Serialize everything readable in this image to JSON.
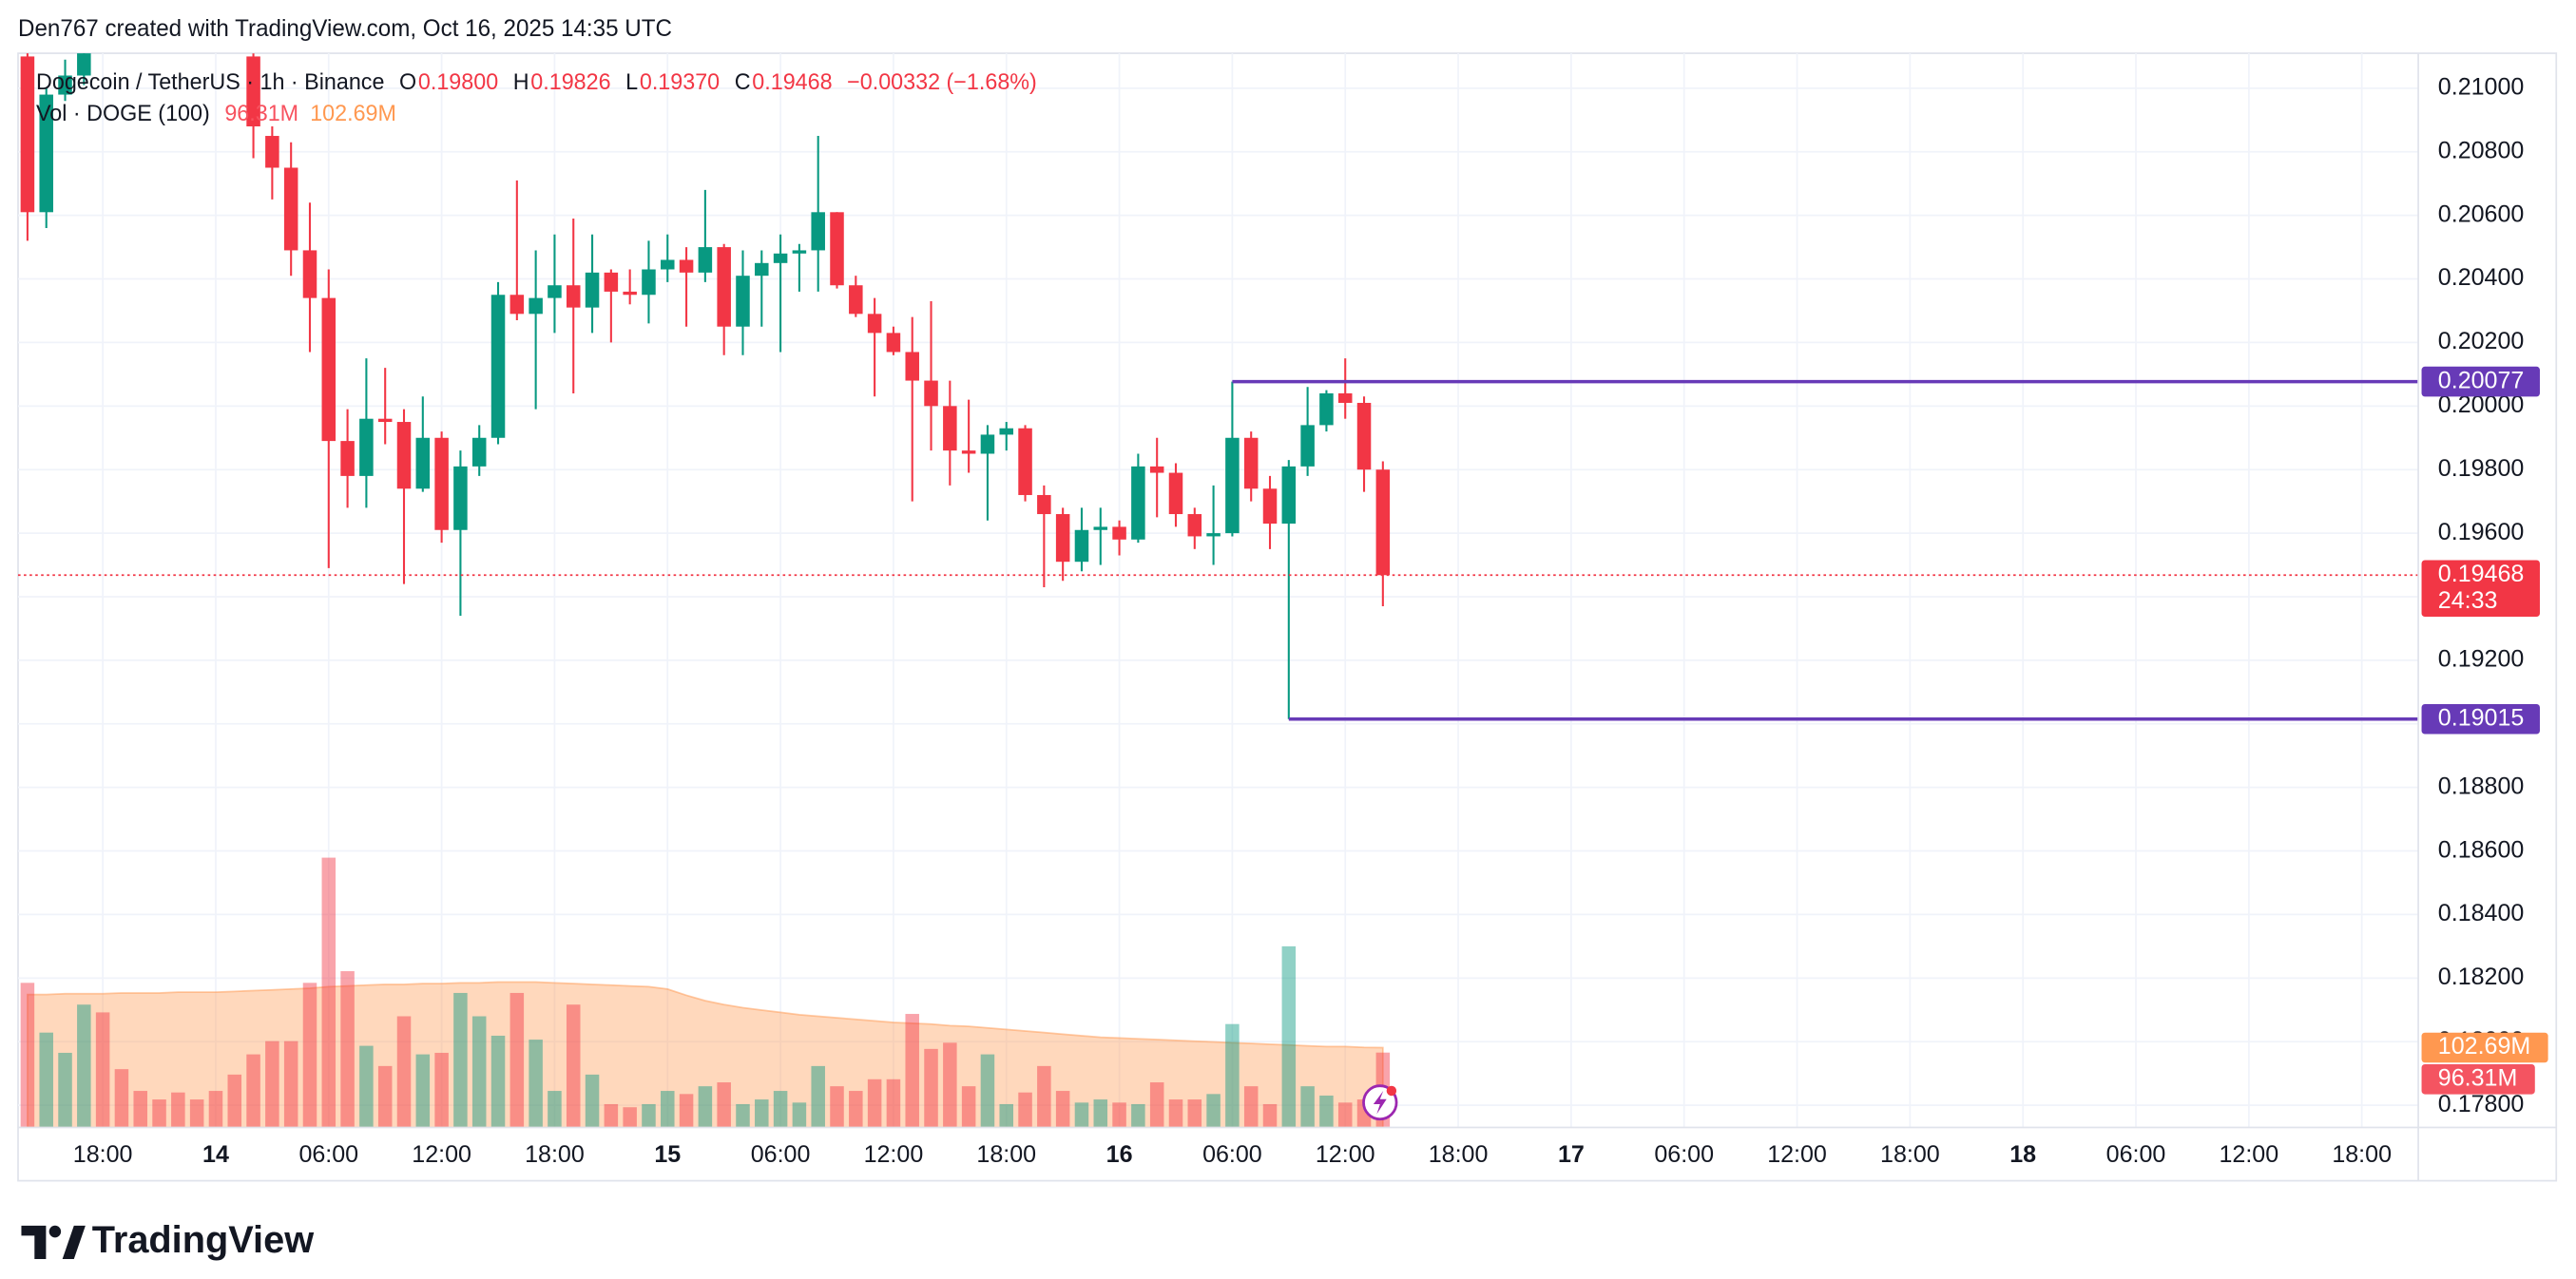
{
  "header": "Den767 created with TradingView.com, Oct 16, 2025 14:35 UTC",
  "footer": {
    "brand": "TradingView"
  },
  "chart_data": {
    "type": "candlestick",
    "legend": {
      "title": "Dogecoin / TetherUS · 1h · Binance",
      "items": [
        {
          "key": "O",
          "value": 0.198,
          "label": "0.19800"
        },
        {
          "key": "H",
          "value": 0.19826,
          "label": "0.19826"
        },
        {
          "key": "L",
          "value": 0.1937,
          "label": "0.19370"
        },
        {
          "key": "C",
          "value": 0.19468,
          "label": "0.19468"
        }
      ],
      "change": {
        "value": -0.00332,
        "percent": -1.68,
        "label": "−0.00332 (−1.68%)"
      },
      "volume_title": "Vol · DOGE (100)"
    },
    "up_color": "#089981",
    "down_color": "#f23645",
    "grid": true,
    "x": [
      "2025-10-13T14:00",
      "2025-10-13T15:00",
      "2025-10-13T16:00",
      "2025-10-13T17:00",
      "2025-10-13T18:00",
      "2025-10-13T19:00",
      "2025-10-13T20:00",
      "2025-10-13T21:00",
      "2025-10-13T22:00",
      "2025-10-13T23:00",
      "2025-10-14T00:00",
      "2025-10-14T01:00",
      "2025-10-14T02:00",
      "2025-10-14T03:00",
      "2025-10-14T04:00",
      "2025-10-14T05:00",
      "2025-10-14T06:00",
      "2025-10-14T07:00",
      "2025-10-14T08:00",
      "2025-10-14T09:00",
      "2025-10-14T10:00",
      "2025-10-14T11:00",
      "2025-10-14T12:00",
      "2025-10-14T13:00",
      "2025-10-14T14:00",
      "2025-10-14T15:00",
      "2025-10-14T16:00",
      "2025-10-14T17:00",
      "2025-10-14T18:00",
      "2025-10-14T19:00",
      "2025-10-14T20:00",
      "2025-10-14T21:00",
      "2025-10-14T22:00",
      "2025-10-14T23:00",
      "2025-10-15T00:00",
      "2025-10-15T01:00",
      "2025-10-15T02:00",
      "2025-10-15T03:00",
      "2025-10-15T04:00",
      "2025-10-15T05:00",
      "2025-10-15T06:00",
      "2025-10-15T07:00",
      "2025-10-15T08:00",
      "2025-10-15T09:00",
      "2025-10-15T10:00",
      "2025-10-15T11:00",
      "2025-10-15T12:00",
      "2025-10-15T13:00",
      "2025-10-15T14:00",
      "2025-10-15T15:00",
      "2025-10-15T16:00",
      "2025-10-15T17:00",
      "2025-10-15T18:00",
      "2025-10-15T19:00",
      "2025-10-15T20:00",
      "2025-10-15T21:00",
      "2025-10-15T22:00",
      "2025-10-15T23:00",
      "2025-10-16T00:00",
      "2025-10-16T01:00",
      "2025-10-16T02:00",
      "2025-10-16T03:00",
      "2025-10-16T04:00",
      "2025-10-16T05:00",
      "2025-10-16T06:00",
      "2025-10-16T07:00",
      "2025-10-16T08:00",
      "2025-10-16T09:00",
      "2025-10-16T10:00",
      "2025-10-16T11:00",
      "2025-10-16T12:00",
      "2025-10-16T13:00",
      "2025-10-16T14:00"
    ],
    "open": [
      0.211,
      0.2061,
      0.2098,
      0.2104,
      null,
      null,
      null,
      null,
      null,
      null,
      null,
      null,
      0.211,
      0.2085,
      0.2075,
      0.2049,
      0.2034,
      0.1989,
      0.1978,
      0.1996,
      0.1995,
      0.1974,
      0.199,
      0.1961,
      0.1981,
      0.199,
      0.2035,
      0.2029,
      0.2034,
      0.2038,
      0.2031,
      0.2042,
      0.2036,
      0.2035,
      0.2043,
      0.2046,
      0.2042,
      0.205,
      0.2025,
      0.2041,
      0.2045,
      0.2048,
      0.2049,
      0.2061,
      0.2038,
      0.2029,
      0.2023,
      0.2017,
      0.2008,
      0.2,
      0.1986,
      0.1985,
      0.1991,
      0.1993,
      0.1972,
      0.1966,
      0.1951,
      0.1961,
      0.1962,
      0.1958,
      0.1981,
      0.1979,
      0.1966,
      0.1959,
      0.196,
      0.199,
      0.1974,
      0.1963,
      0.1981,
      0.1994,
      0.2004,
      0.2001,
      0.198
    ],
    "high": [
      0.2112,
      0.21,
      0.2109,
      0.2115,
      null,
      null,
      null,
      null,
      null,
      null,
      null,
      null,
      0.2111,
      0.2088,
      0.2083,
      0.2064,
      0.2043,
      0.1999,
      0.2015,
      0.2012,
      0.1999,
      0.2003,
      0.1992,
      0.1986,
      0.1994,
      0.2039,
      0.2071,
      0.2049,
      0.2054,
      0.2059,
      0.2054,
      0.2043,
      0.2043,
      0.2052,
      0.2054,
      0.205,
      0.2068,
      0.2051,
      0.2049,
      0.2049,
      0.2054,
      0.2051,
      0.2085,
      0.2061,
      0.2041,
      0.2034,
      0.2025,
      0.2028,
      0.2033,
      0.2008,
      0.2002,
      0.1994,
      0.1995,
      0.1994,
      0.1975,
      0.1968,
      0.1968,
      0.1968,
      0.1964,
      0.1985,
      0.199,
      0.1982,
      0.1968,
      0.1975,
      0.20077,
      0.1992,
      0.1978,
      0.1983,
      0.2006,
      0.2005,
      0.2015,
      0.2003,
      0.19826
    ],
    "low": [
      0.2052,
      0.2056,
      0.2096,
      0.2101,
      null,
      null,
      null,
      null,
      null,
      null,
      null,
      null,
      0.2078,
      0.2065,
      0.2041,
      0.2017,
      0.1949,
      0.1968,
      0.1968,
      0.1988,
      0.1944,
      0.1973,
      0.1957,
      0.1934,
      0.1978,
      0.1988,
      0.2027,
      0.1999,
      0.2023,
      0.2004,
      0.2023,
      0.202,
      0.2032,
      0.2026,
      0.2039,
      0.2025,
      0.2039,
      0.2016,
      0.2016,
      0.2025,
      0.2017,
      0.2036,
      0.2036,
      0.2037,
      0.2028,
      0.2003,
      0.2016,
      0.197,
      0.1986,
      0.1975,
      0.1979,
      0.1964,
      0.1986,
      0.197,
      0.1943,
      0.1945,
      0.1948,
      0.195,
      0.1953,
      0.1957,
      0.1965,
      0.1962,
      0.1955,
      0.195,
      0.1959,
      0.197,
      0.1955,
      0.19015,
      0.1978,
      0.1992,
      0.1996,
      0.1973,
      0.1937
    ],
    "close": [
      0.2061,
      0.2098,
      0.2104,
      0.2112,
      null,
      null,
      null,
      null,
      null,
      null,
      null,
      null,
      0.2088,
      0.2075,
      0.2049,
      0.2034,
      0.1989,
      0.1978,
      0.1996,
      0.1995,
      0.1974,
      0.199,
      0.1961,
      0.1981,
      0.199,
      0.2035,
      0.2029,
      0.2034,
      0.2038,
      0.2031,
      0.2042,
      0.2036,
      0.2035,
      0.2043,
      0.2046,
      0.2042,
      0.205,
      0.2025,
      0.2041,
      0.2045,
      0.2048,
      0.2049,
      0.2061,
      0.2038,
      0.2029,
      0.2023,
      0.2017,
      0.2008,
      0.2,
      0.1986,
      0.1985,
      0.1991,
      0.1993,
      0.1972,
      0.1966,
      0.1951,
      0.1961,
      0.1962,
      0.1958,
      0.1981,
      0.1979,
      0.1966,
      0.1959,
      0.196,
      0.199,
      0.1974,
      0.1963,
      0.1981,
      0.1994,
      0.2004,
      0.2001,
      0.198,
      0.19468
    ],
    "volume": {
      "values": [
        186,
        122,
        96,
        158,
        148,
        75,
        47,
        36,
        45,
        36,
        47,
        68,
        94,
        111,
        111,
        186,
        347,
        201,
        105,
        79,
        143,
        94,
        96,
        173,
        143,
        118,
        173,
        113,
        47,
        158,
        68,
        30,
        26,
        30,
        47,
        43,
        53,
        58,
        30,
        36,
        47,
        32,
        79,
        53,
        47,
        62,
        62,
        146,
        101,
        109,
        53,
        94,
        30,
        45,
        79,
        47,
        32,
        36,
        32,
        30,
        58,
        36,
        36,
        43,
        133,
        53,
        30,
        233,
        53,
        41,
        32,
        36,
        96.31
      ],
      "value_label": "96.31M",
      "ma": [
        171,
        171,
        172,
        172,
        172,
        173,
        173,
        173,
        174,
        174,
        174,
        175,
        176,
        177,
        178,
        179,
        181,
        182,
        183,
        184,
        184,
        185,
        185,
        186,
        186,
        187,
        187,
        187,
        186,
        185,
        184,
        183,
        182,
        181,
        178,
        170,
        163,
        158,
        154,
        151,
        148,
        145,
        143,
        141,
        139,
        137,
        135,
        134,
        133,
        131,
        130,
        128,
        126,
        124,
        122,
        120,
        118,
        116,
        115,
        114,
        113,
        112,
        111,
        110,
        109,
        108,
        107,
        106,
        105,
        104,
        104,
        103,
        102.69
      ],
      "ma_label": "102.69M",
      "ma_color": "#ff9850"
    },
    "levels": [
      {
        "value": 0.20077,
        "start": "2025-10-16T06:00",
        "color": "#673ab7"
      },
      {
        "value": 0.19015,
        "start": "2025-10-16T09:00",
        "color": "#673ab7"
      }
    ],
    "countdown": "24:33",
    "xlim": [
      "2025-10-13T13:30",
      "2025-10-18T21:00"
    ],
    "xticks": [
      {
        "value": "2025-10-13T18:00",
        "label": "18:00"
      },
      {
        "value": "2025-10-14T00:00",
        "label": "14"
      },
      {
        "value": "2025-10-14T06:00",
        "label": "06:00"
      },
      {
        "value": "2025-10-14T12:00",
        "label": "12:00"
      },
      {
        "value": "2025-10-14T18:00",
        "label": "18:00"
      },
      {
        "value": "2025-10-15T00:00",
        "label": "15"
      },
      {
        "value": "2025-10-15T06:00",
        "label": "06:00"
      },
      {
        "value": "2025-10-15T12:00",
        "label": "12:00"
      },
      {
        "value": "2025-10-15T18:00",
        "label": "18:00"
      },
      {
        "value": "2025-10-16T00:00",
        "label": "16"
      },
      {
        "value": "2025-10-16T06:00",
        "label": "06:00"
      },
      {
        "value": "2025-10-16T12:00",
        "label": "12:00"
      },
      {
        "value": "2025-10-16T18:00",
        "label": "18:00"
      },
      {
        "value": "2025-10-17T00:00",
        "label": "17"
      },
      {
        "value": "2025-10-17T06:00",
        "label": "06:00"
      },
      {
        "value": "2025-10-17T12:00",
        "label": "12:00"
      },
      {
        "value": "2025-10-17T18:00",
        "label": "18:00"
      },
      {
        "value": "2025-10-18T00:00",
        "label": "18"
      },
      {
        "value": "2025-10-18T06:00",
        "label": "06:00"
      },
      {
        "value": "2025-10-18T12:00",
        "label": "12:00"
      },
      {
        "value": "2025-10-18T18:00",
        "label": "18:00"
      }
    ],
    "ylim": [
      0.1773,
      0.2111
    ],
    "yticks": [
      {
        "value": 0.178,
        "label": "0.17800"
      },
      {
        "value": 0.18,
        "label": "0.18000"
      },
      {
        "value": 0.182,
        "label": "0.18200"
      },
      {
        "value": 0.184,
        "label": "0.18400"
      },
      {
        "value": 0.186,
        "label": "0.18600"
      },
      {
        "value": 0.188,
        "label": "0.18800"
      },
      {
        "value": 0.19,
        "label": "0.19000"
      },
      {
        "value": 0.192,
        "label": "0.19200"
      },
      {
        "value": 0.194,
        "label": "0.19400"
      },
      {
        "value": 0.196,
        "label": "0.19600"
      },
      {
        "value": 0.198,
        "label": "0.19800"
      },
      {
        "value": 0.2,
        "label": "0.20000"
      },
      {
        "value": 0.202,
        "label": "0.20200"
      },
      {
        "value": 0.204,
        "label": "0.20400"
      },
      {
        "value": 0.206,
        "label": "0.20600"
      },
      {
        "value": 0.208,
        "label": "0.20800"
      },
      {
        "value": 0.21,
        "label": "0.21000"
      }
    ]
  }
}
